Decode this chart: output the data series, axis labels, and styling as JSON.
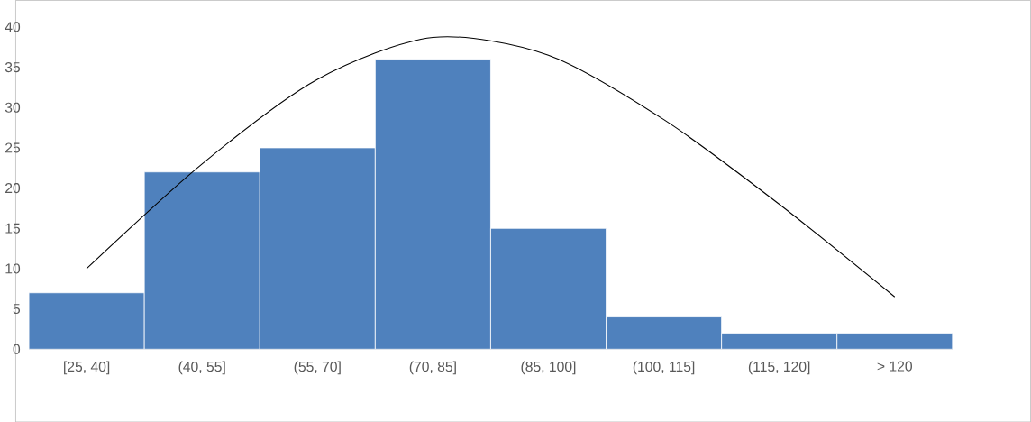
{
  "chart_data": {
    "type": "bar",
    "categories": [
      "[25, 40]",
      "(40, 55]",
      "(55, 70]",
      "(70, 85]",
      "(85, 100]",
      "(100, 115]",
      "(115, 120]",
      "> 120"
    ],
    "series": [
      {
        "color": "#4f81bd",
        "values": [
          7,
          22,
          25,
          36,
          15,
          4,
          2,
          2
        ]
      },
      {
        "type": "line",
        "color": "#000000",
        "values": [
          10,
          23,
          33.5,
          38.7,
          36.5,
          28.5,
          18,
          6.5
        ]
      }
    ],
    "ylim": [
      0,
      40
    ],
    "yticks": [
      0,
      5,
      10,
      15,
      20,
      25,
      30,
      35,
      40
    ],
    "grid": false,
    "marker": "none",
    "line_style": "solid"
  }
}
